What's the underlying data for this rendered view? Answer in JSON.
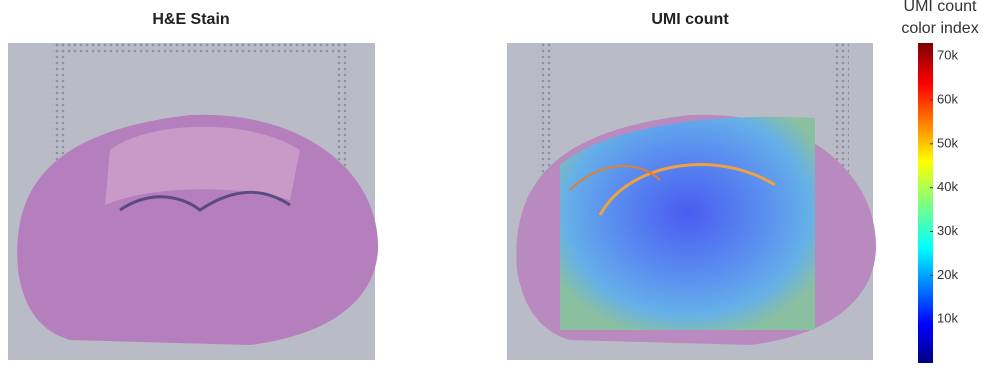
{
  "panels": [
    {
      "title": "H&E Stain"
    },
    {
      "title": "UMI count"
    }
  ],
  "colorbar": {
    "title_lines": [
      "UMI count",
      "color index"
    ],
    "range": [
      0,
      73000
    ],
    "ticks": [
      {
        "value": 10000,
        "label": "10k"
      },
      {
        "value": 20000,
        "label": "20k"
      },
      {
        "value": 30000,
        "label": "30k"
      },
      {
        "value": 40000,
        "label": "40k"
      },
      {
        "value": 50000,
        "label": "50k"
      },
      {
        "value": 60000,
        "label": "60k"
      },
      {
        "value": 70000,
        "label": "70k"
      }
    ]
  }
}
